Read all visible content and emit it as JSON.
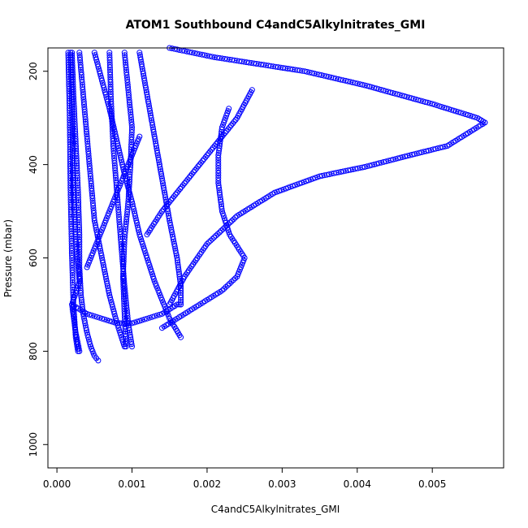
{
  "chart_data": {
    "type": "scatter",
    "title": "ATOM1 Southbound C4andC5Alkylnitrates_GMI",
    "xlabel": "C4andC5Alkylnitrates_GMI",
    "ylabel": "Pressure (mbar)",
    "xlim": [
      -0.00012,
      0.00595
    ],
    "ylim": [
      1050,
      150
    ],
    "x_ticks": [
      0.0,
      0.001,
      0.002,
      0.003,
      0.004,
      0.005
    ],
    "x_tick_labels": [
      "0.000",
      "0.001",
      "0.002",
      "0.003",
      "0.004",
      "0.005"
    ],
    "y_ticks": [
      200,
      400,
      600,
      800,
      1000
    ],
    "y_tick_labels": [
      "200",
      "400",
      "600",
      "800",
      "1000"
    ],
    "y_axis_reversed": true,
    "grid": false,
    "marker": "open-circle",
    "color": "#0000ff",
    "series": [
      {
        "x": [
          0.0002,
          0.00022,
          0.00025,
          0.00028,
          0.0003,
          0.0003,
          0.00032,
          0.00035,
          0.0004,
          0.00045,
          0.0005,
          0.00055
        ],
        "y": [
          160,
          250,
          350,
          450,
          550,
          620,
          680,
          720,
          760,
          790,
          810,
          820
        ]
      },
      {
        "x": [
          0.00018,
          0.0002,
          0.00021,
          0.00022,
          0.00025,
          0.0003,
          0.0002,
          0.00025,
          0.0003
        ],
        "y": [
          160,
          260,
          360,
          460,
          560,
          650,
          700,
          760,
          800
        ]
      },
      {
        "x": [
          0.0003,
          0.00035,
          0.0004,
          0.00045,
          0.0005,
          0.0006,
          0.0007,
          0.0008,
          0.0009
        ],
        "y": [
          160,
          250,
          340,
          430,
          520,
          600,
          680,
          740,
          790
        ]
      },
      {
        "x": [
          0.0005,
          0.0006,
          0.0007,
          0.0008,
          0.0009,
          0.001,
          0.0011,
          0.0012,
          0.0013,
          0.0014,
          0.0015,
          0.00165
        ],
        "y": [
          160,
          220,
          280,
          350,
          420,
          480,
          550,
          600,
          650,
          690,
          730,
          770
        ]
      },
      {
        "x": [
          0.0009,
          0.00095,
          0.001,
          0.00098,
          0.00095,
          0.0009,
          0.00088,
          0.0009,
          0.00092
        ],
        "y": [
          160,
          240,
          320,
          400,
          480,
          560,
          640,
          720,
          790
        ]
      },
      {
        "x": [
          0.0011,
          0.0012,
          0.0013,
          0.0014,
          0.0015,
          0.0016,
          0.00165,
          0.00165
        ],
        "y": [
          160,
          250,
          340,
          430,
          520,
          600,
          660,
          700
        ]
      },
      {
        "x": [
          0.0015,
          0.0018,
          0.0021,
          0.0023,
          0.0033,
          0.0041,
          0.005,
          0.0056,
          0.0057
        ],
        "y": [
          150,
          160,
          170,
          175,
          200,
          230,
          270,
          300,
          310
        ]
      },
      {
        "x": [
          0.0057,
          0.0055,
          0.0052,
          0.0047,
          0.0041,
          0.0035,
          0.0029,
          0.0024,
          0.002,
          0.0017,
          0.0015
        ],
        "y": [
          310,
          330,
          360,
          380,
          405,
          425,
          460,
          510,
          570,
          640,
          700
        ]
      },
      {
        "x": [
          0.00229,
          0.0022,
          0.00215,
          0.00215,
          0.0022,
          0.0023,
          0.0025,
          0.0024,
          0.0022,
          0.002,
          0.0018,
          0.0016,
          0.0014
        ],
        "y": [
          280,
          320,
          380,
          440,
          500,
          550,
          600,
          640,
          670,
          690,
          710,
          730,
          750
        ]
      },
      {
        "x": [
          0.0002,
          0.0004,
          0.0006,
          0.0008,
          0.001,
          0.0012,
          0.0014,
          0.0016,
          0.00165
        ],
        "y": [
          700,
          720,
          730,
          740,
          740,
          730,
          720,
          700,
          700
        ]
      },
      {
        "x": [
          0.0012,
          0.0014,
          0.0016,
          0.0018,
          0.002,
          0.0022,
          0.0024,
          0.0026
        ],
        "y": [
          550,
          500,
          460,
          420,
          380,
          340,
          300,
          240
        ]
      },
      {
        "x": [
          0.0004,
          0.0005,
          0.0006,
          0.0007,
          0.0008,
          0.0009,
          0.001,
          0.0011
        ],
        "y": [
          620,
          580,
          540,
          500,
          460,
          420,
          380,
          340
        ]
      },
      {
        "x": [
          0.00015,
          0.00017,
          0.00018,
          0.0002,
          0.00022,
          0.00025,
          0.00028
        ],
        "y": [
          160,
          300,
          450,
          600,
          700,
          770,
          800
        ]
      },
      {
        "x": [
          0.0007,
          0.00072,
          0.00075,
          0.0008,
          0.00085,
          0.0009,
          0.00095,
          0.001
        ],
        "y": [
          160,
          260,
          360,
          460,
          560,
          660,
          740,
          790
        ]
      }
    ]
  }
}
